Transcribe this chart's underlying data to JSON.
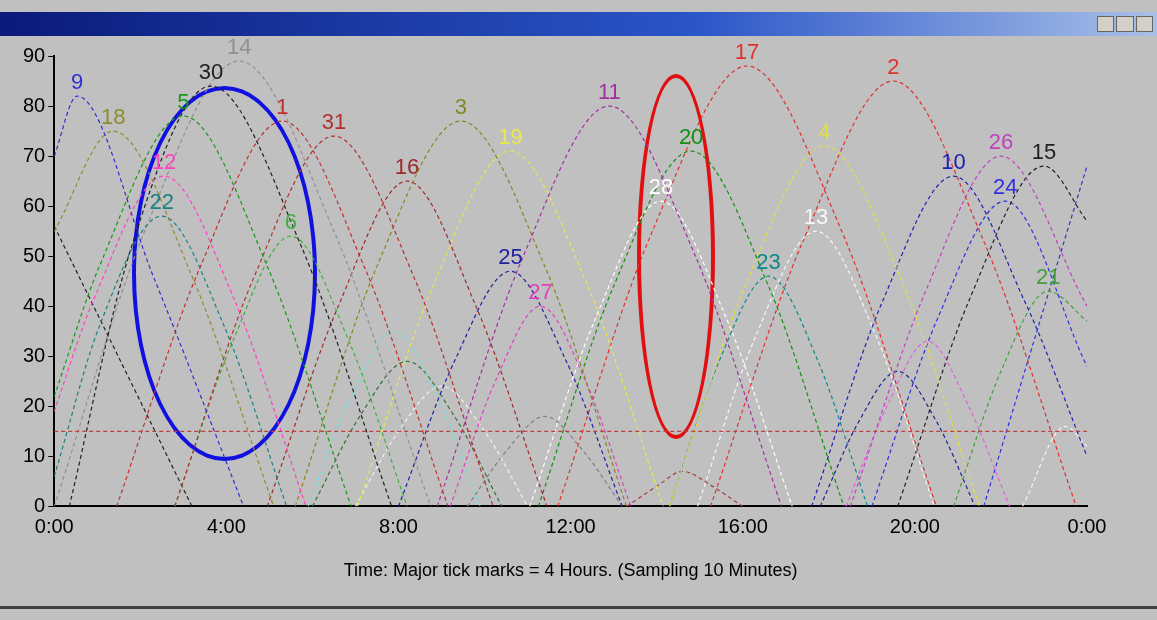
{
  "chart_data": {
    "type": "line",
    "xlabel": "Time: Major tick marks = 4 Hours. (Sampling 10 Minutes)",
    "xlim": [
      0,
      24
    ],
    "xticks": [
      {
        "value": 0,
        "label": "0:00"
      },
      {
        "value": 4,
        "label": "4:00"
      },
      {
        "value": 8,
        "label": "8:00"
      },
      {
        "value": 12,
        "label": "12:00"
      },
      {
        "value": 16,
        "label": "16:00"
      },
      {
        "value": 20,
        "label": "20:00"
      },
      {
        "value": 24,
        "label": "0:00"
      }
    ],
    "ylim": [
      0,
      90
    ],
    "yticks": [
      0,
      10,
      20,
      30,
      40,
      50,
      60,
      70,
      80,
      90
    ],
    "grid": false,
    "legend": false,
    "marker": "none",
    "line_style": "dashed",
    "ref_lines": [
      {
        "axis": "y",
        "value": 15,
        "color": "#c04040",
        "line_style": "dashed"
      }
    ],
    "series": [
      {
        "name": "9",
        "color": "#3030d0",
        "x": [
          0,
          0.53,
          2.3,
          4.4
        ],
        "values": [
          70,
          82,
          46,
          0
        ]
      },
      {
        "name": "18",
        "color": "#8c8c30",
        "x": [
          0,
          1.37,
          3.2,
          5.1
        ],
        "values": [
          55,
          75,
          46,
          0
        ]
      },
      {
        "name": "5",
        "color": "#189818",
        "x": [
          0,
          1.05,
          3.0,
          4.95,
          6.9
        ],
        "values": [
          22,
          48,
          78,
          48,
          0
        ]
      },
      {
        "name": "12",
        "color": "#ff40c0",
        "x": [
          0,
          0.9,
          2.55,
          4.2,
          5.85
        ],
        "values": [
          19,
          41,
          66,
          41,
          0
        ]
      },
      {
        "name": "22",
        "color": "#1a8080",
        "x": [
          0,
          1.05,
          2.5,
          3.95,
          5.4
        ],
        "values": [
          6,
          36,
          58,
          36,
          0
        ]
      },
      {
        "name": "30",
        "color": "#202020",
        "x": [
          0.35,
          1.8,
          3.64,
          5.74,
          7.84
        ],
        "values": [
          0,
          52,
          84,
          52,
          0
        ]
      },
      {
        "name": "14",
        "color": "#909090",
        "x": [
          0,
          2.1,
          4.3,
          6.5,
          8.75
        ],
        "values": [
          0,
          55,
          89,
          55,
          0
        ]
      },
      {
        "name": "1",
        "color": "#c03030",
        "x": [
          1.45,
          3.4,
          5.3,
          7.2,
          9.15
        ],
        "values": [
          0,
          48,
          77,
          48,
          0
        ]
      },
      {
        "name": "31",
        "color": "#b03030",
        "x": [
          2.8,
          4.65,
          6.5,
          8.35,
          10.2
        ],
        "values": [
          0,
          46,
          74,
          46,
          0
        ]
      },
      {
        "name": "6",
        "color": "#40b040",
        "x": [
          2.8,
          4.15,
          5.5,
          6.85,
          8.2
        ],
        "values": [
          0,
          33,
          54,
          33,
          0
        ]
      },
      {
        "name": "16",
        "color": "#a02828",
        "x": [
          4.95,
          6.6,
          8.2,
          9.8,
          11.45
        ],
        "values": [
          0,
          40,
          65,
          40,
          0
        ]
      },
      {
        "name": "3",
        "color": "#868620",
        "x": [
          5.6,
          7.5,
          9.45,
          11.4,
          13.3
        ],
        "values": [
          0,
          48,
          77,
          48,
          0
        ]
      },
      {
        "name": "19",
        "color": "#e8e850",
        "x": [
          7.05,
          8.8,
          10.6,
          12.4,
          14.15
        ],
        "values": [
          0,
          44,
          71,
          44,
          0
        ]
      },
      {
        "name": "25",
        "color": "#2020a0",
        "x": [
          8.0,
          9.3,
          10.6,
          11.9,
          13.2
        ],
        "values": [
          0,
          29,
          47,
          29,
          0
        ]
      },
      {
        "name": "27",
        "color": "#e040c0",
        "x": [
          9.2,
          10.25,
          11.3,
          12.35,
          13.4
        ],
        "values": [
          0,
          25,
          40,
          25,
          0
        ]
      },
      {
        "name": "11",
        "color": "#a030a0",
        "x": [
          8.9,
          10.9,
          12.9,
          14.9,
          16.9
        ],
        "values": [
          0,
          50,
          80,
          50,
          0
        ]
      },
      {
        "name": "20",
        "color": "#109010",
        "x": [
          11.25,
          13.0,
          14.8,
          16.6,
          18.35
        ],
        "values": [
          0,
          44,
          71,
          44,
          0
        ]
      },
      {
        "name": "28",
        "color": "#ffffff",
        "x": [
          11.05,
          12.6,
          14.1,
          15.6,
          17.15
        ],
        "values": [
          0,
          38,
          61,
          38,
          0
        ]
      },
      {
        "name": "17",
        "color": "#e03030",
        "x": [
          11.7,
          13.9,
          16.1,
          18.3,
          20.5
        ],
        "values": [
          0,
          55,
          88,
          55,
          0
        ]
      },
      {
        "name": "4",
        "color": "#e0e040",
        "x": [
          14.3,
          16.1,
          17.9,
          19.7,
          21.5
        ],
        "values": [
          0,
          45,
          72,
          45,
          0
        ]
      },
      {
        "name": "13",
        "color": "#f8f8f8",
        "x": [
          14.95,
          16.3,
          17.7,
          19.1,
          20.45
        ],
        "values": [
          0,
          34,
          55,
          34,
          0
        ]
      },
      {
        "name": "23",
        "color": "#0a8a8a",
        "x": [
          14.3,
          15.45,
          16.6,
          17.75,
          18.9
        ],
        "values": [
          0,
          29,
          46,
          29,
          0
        ]
      },
      {
        "name": "2",
        "color": "#e03030",
        "x": [
          15.25,
          17.4,
          19.5,
          21.6,
          23.75
        ],
        "values": [
          0,
          53,
          85,
          53,
          0
        ]
      },
      {
        "name": "10",
        "color": "#2020b0",
        "x": [
          17.6,
          19.25,
          20.9,
          22.55,
          24
        ],
        "values": [
          0,
          41,
          66,
          41,
          10
        ]
      },
      {
        "name": "26",
        "color": "#c040c0",
        "x": [
          18.5,
          20.25,
          22.0,
          24
        ],
        "values": [
          0,
          43,
          70,
          40
        ]
      },
      {
        "name": "15",
        "color": "#202020",
        "x": [
          19.6,
          21.3,
          23.0,
          24
        ],
        "values": [
          0,
          42,
          68,
          57
        ]
      },
      {
        "name": "24",
        "color": "#3030e0",
        "x": [
          19.0,
          20.55,
          22.1,
          24
        ],
        "values": [
          0,
          38,
          61,
          28
        ]
      },
      {
        "name": "21",
        "color": "#40a040",
        "x": [
          20.9,
          22.0,
          23.1,
          24
        ],
        "values": [
          0,
          27,
          43,
          37
        ]
      },
      {
        "color": "#202020",
        "x": [
          0,
          1.6,
          3.2
        ],
        "values": [
          56,
          28,
          0
        ]
      },
      {
        "color": "#70e0e0",
        "x": [
          5.9,
          6.9,
          7.9,
          8.9,
          9.9
        ],
        "values": [
          0,
          22,
          35,
          22,
          0
        ]
      },
      {
        "color": "#307030",
        "x": [
          6.0,
          7.1,
          8.2,
          9.3,
          10.4
        ],
        "values": [
          0,
          18,
          29,
          18,
          0
        ]
      },
      {
        "color": "#f0f0f0",
        "x": [
          7.0,
          8.0,
          9.0,
          10.0,
          11.0
        ],
        "values": [
          0,
          15,
          24,
          15,
          0
        ]
      },
      {
        "color": "#808080",
        "x": [
          9.6,
          10.5,
          11.4,
          12.3,
          13.2
        ],
        "values": [
          0,
          11,
          18,
          11,
          0
        ]
      },
      {
        "color": "#a04040",
        "x": [
          13.3,
          14.0,
          14.6,
          15.3,
          16.0
        ],
        "values": [
          0,
          4,
          7,
          4,
          0
        ]
      },
      {
        "color": "#e060e0",
        "x": [
          18.4,
          19.35,
          20.3,
          21.25,
          22.2
        ],
        "values": [
          0,
          20,
          33,
          20,
          0
        ]
      },
      {
        "color": "#202090",
        "x": [
          17.8,
          18.7,
          19.6,
          20.5,
          21.4
        ],
        "values": [
          0,
          17,
          27,
          17,
          0
        ]
      },
      {
        "color": "#3030e0",
        "x": [
          21.6,
          24
        ],
        "values": [
          0,
          68
        ]
      },
      {
        "color": "#f4f4f4",
        "x": [
          22.5,
          23.5,
          24
        ],
        "values": [
          0,
          16,
          12
        ]
      }
    ]
  }
}
